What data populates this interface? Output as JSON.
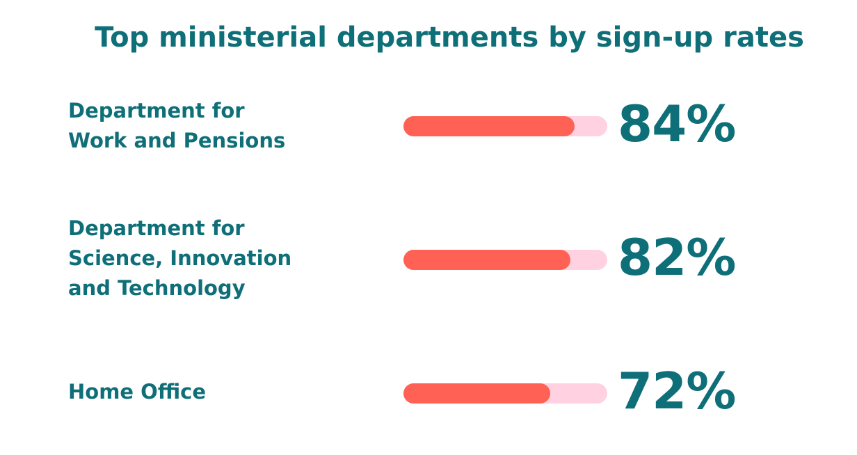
{
  "chart_data": {
    "type": "bar",
    "orientation": "horizontal",
    "title": "Top ministerial departments by sign-up rates",
    "categories": [
      [
        "Department for",
        "Work and Pensions"
      ],
      [
        "Department for",
        "Science, Innovation",
        "and Technology"
      ],
      [
        "Home Office"
      ]
    ],
    "values": [
      84,
      82,
      72
    ],
    "value_labels": [
      "84%",
      "82%",
      "72%"
    ],
    "xlim": [
      0,
      100
    ],
    "grid": false,
    "colors": {
      "text": "#0f6f78",
      "bar_fill": "#ff6254",
      "bar_track": "#ffd1e1"
    }
  }
}
